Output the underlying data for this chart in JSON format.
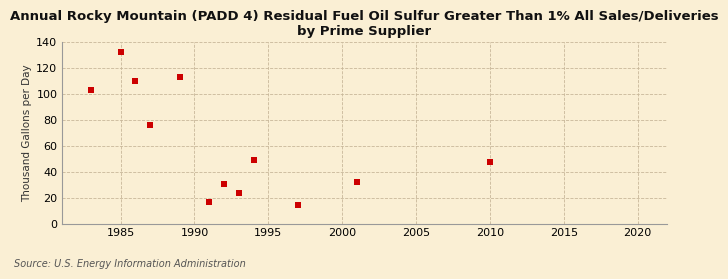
{
  "title": "Annual Rocky Mountain (PADD 4) Residual Fuel Oil Sulfur Greater Than 1% All Sales/Deliveries\nby Prime Supplier",
  "ylabel": "Thousand Gallons per Day",
  "source": "Source: U.S. Energy Information Administration",
  "background_color": "#faefd4",
  "plot_background_color": "#faefd4",
  "marker_color": "#cc0000",
  "marker": "s",
  "marker_size": 4,
  "xlim": [
    1981,
    2022
  ],
  "ylim": [
    0,
    140
  ],
  "xticks": [
    1985,
    1990,
    1995,
    2000,
    2005,
    2010,
    2015,
    2020
  ],
  "yticks": [
    0,
    20,
    40,
    60,
    80,
    100,
    120,
    140
  ],
  "data_x": [
    1983,
    1985,
    1986,
    1987,
    1989,
    1991,
    1992,
    1993,
    1994,
    1997,
    2001,
    2010
  ],
  "data_y": [
    103,
    132,
    110,
    76,
    113,
    17,
    31,
    24,
    49,
    15,
    32,
    48
  ],
  "grid_color": "#c8b89a",
  "spine_color": "#999999",
  "tick_label_size": 8,
  "title_fontsize": 9.5,
  "ylabel_fontsize": 7.5,
  "source_fontsize": 7
}
